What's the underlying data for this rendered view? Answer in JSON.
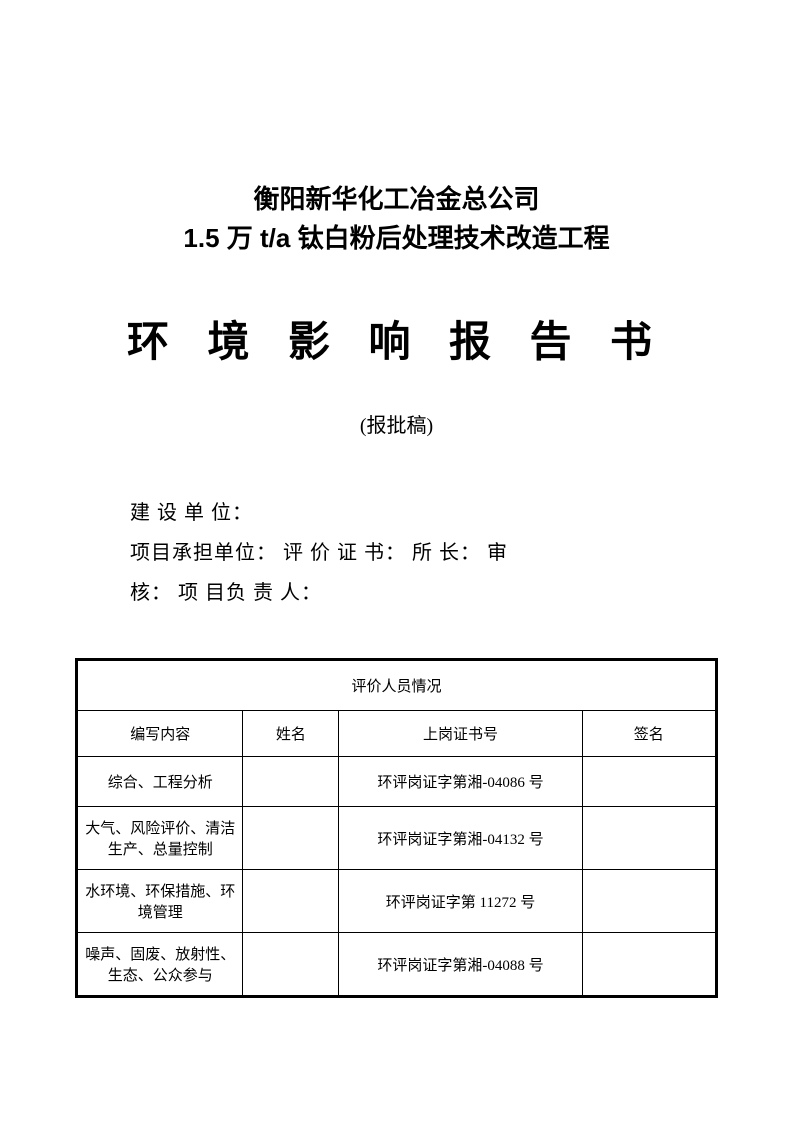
{
  "header": {
    "company_name": "衡阳新华化工冶金总公司",
    "project_name": "1.5 万 t/a 钛白粉后处理技术改造工程",
    "main_title": "环 境 影 响 报 告 书",
    "subtitle": "(报批稿)"
  },
  "info": {
    "line1": "建 设 单   位：",
    "line2": "项目承担单位：   评  价    证  书：   所            长：   审",
    "line3": "核：   项 目负 责 人："
  },
  "table": {
    "title": "评价人员情况",
    "columns": {
      "content": "编写内容",
      "name": "姓名",
      "cert": "上岗证书号",
      "sign": "签名"
    },
    "rows": [
      {
        "content": "综合、工程分析",
        "name": "",
        "cert": "环评岗证字第湘-04086 号",
        "sign": ""
      },
      {
        "content": "大气、风险评价、清洁生产、总量控制",
        "name": "",
        "cert": "环评岗证字第湘-04132 号",
        "sign": ""
      },
      {
        "content": "水环境、环保措施、环境管理",
        "name": "",
        "cert": "环评岗证字第 11272 号",
        "sign": ""
      },
      {
        "content": "噪声、固废、放射性、生态、公众参与",
        "name": "",
        "cert": "环评岗证字第湘-04088 号",
        "sign": ""
      }
    ]
  },
  "styles": {
    "page_bg": "#ffffff",
    "text_color": "#000000",
    "border_color": "#000000",
    "title_fontsize": 42,
    "subtitle_fontsize": 20,
    "header_fontsize": 26,
    "info_fontsize": 20,
    "table_fontsize": 15
  }
}
